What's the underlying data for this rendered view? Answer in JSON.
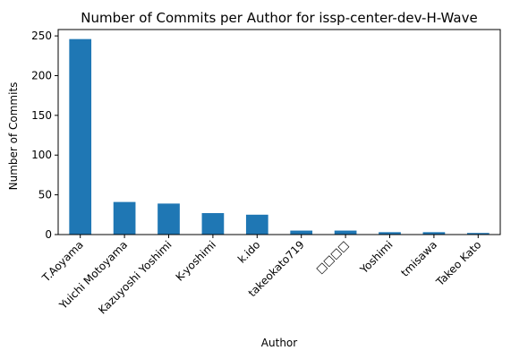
{
  "chart_data": {
    "type": "bar",
    "title": "Number of Commits per Author for issp-center-dev-H-Wave",
    "xlabel": "Author",
    "ylabel": "Number of Commits",
    "categories": [
      "T.Aoyama",
      "Yuichi Motoyama",
      "Kazuyoshi Yoshimi",
      "K-yoshimi",
      "k.ido",
      "takeokato719",
      "□□□□",
      "Yoshimi",
      "tmisawa",
      "Takeo Kato"
    ],
    "values": [
      246,
      41,
      39,
      27,
      25,
      5,
      5,
      3,
      3,
      2
    ],
    "ylim": [
      0,
      258
    ],
    "yticks": [
      0,
      50,
      100,
      150,
      200,
      250
    ],
    "grid": false,
    "legend": "none",
    "bar_color": "#1f77b4"
  }
}
